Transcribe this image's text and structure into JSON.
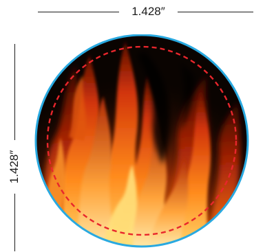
{
  "dimensions": {
    "width_label": "1.428″",
    "height_label": "1.428″"
  },
  "colors": {
    "outline": "#29a9e0",
    "safe_zone": "#e8262c",
    "fire_background": "#0a0401"
  },
  "icons": {
    "artwork": "flame-artwork"
  }
}
